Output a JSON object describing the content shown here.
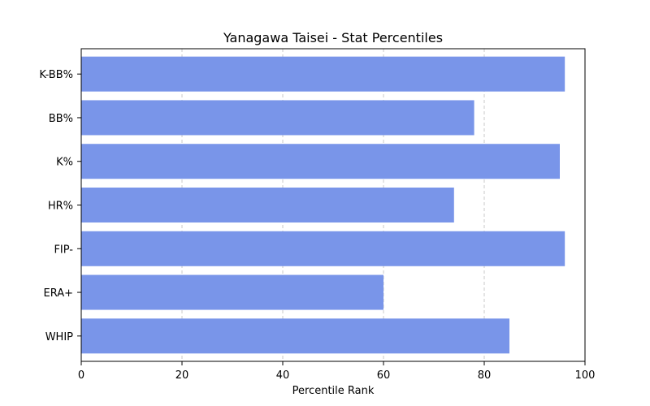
{
  "chart_data": {
    "type": "bar",
    "orientation": "horizontal",
    "title": "Yanagawa Taisei - Stat Percentiles",
    "xlabel": "Percentile Rank",
    "ylabel": "",
    "categories": [
      "WHIP",
      "ERA+",
      "FIP-",
      "HR%",
      "K%",
      "BB%",
      "K-BB%"
    ],
    "values": [
      85,
      60,
      96,
      74,
      95,
      78,
      96
    ],
    "xlim": [
      0,
      100
    ],
    "xticks": [
      0,
      20,
      40,
      60,
      80,
      100
    ],
    "grid": {
      "x": true,
      "y": false,
      "style": "dashed"
    },
    "bar_color": "#7995e9"
  }
}
